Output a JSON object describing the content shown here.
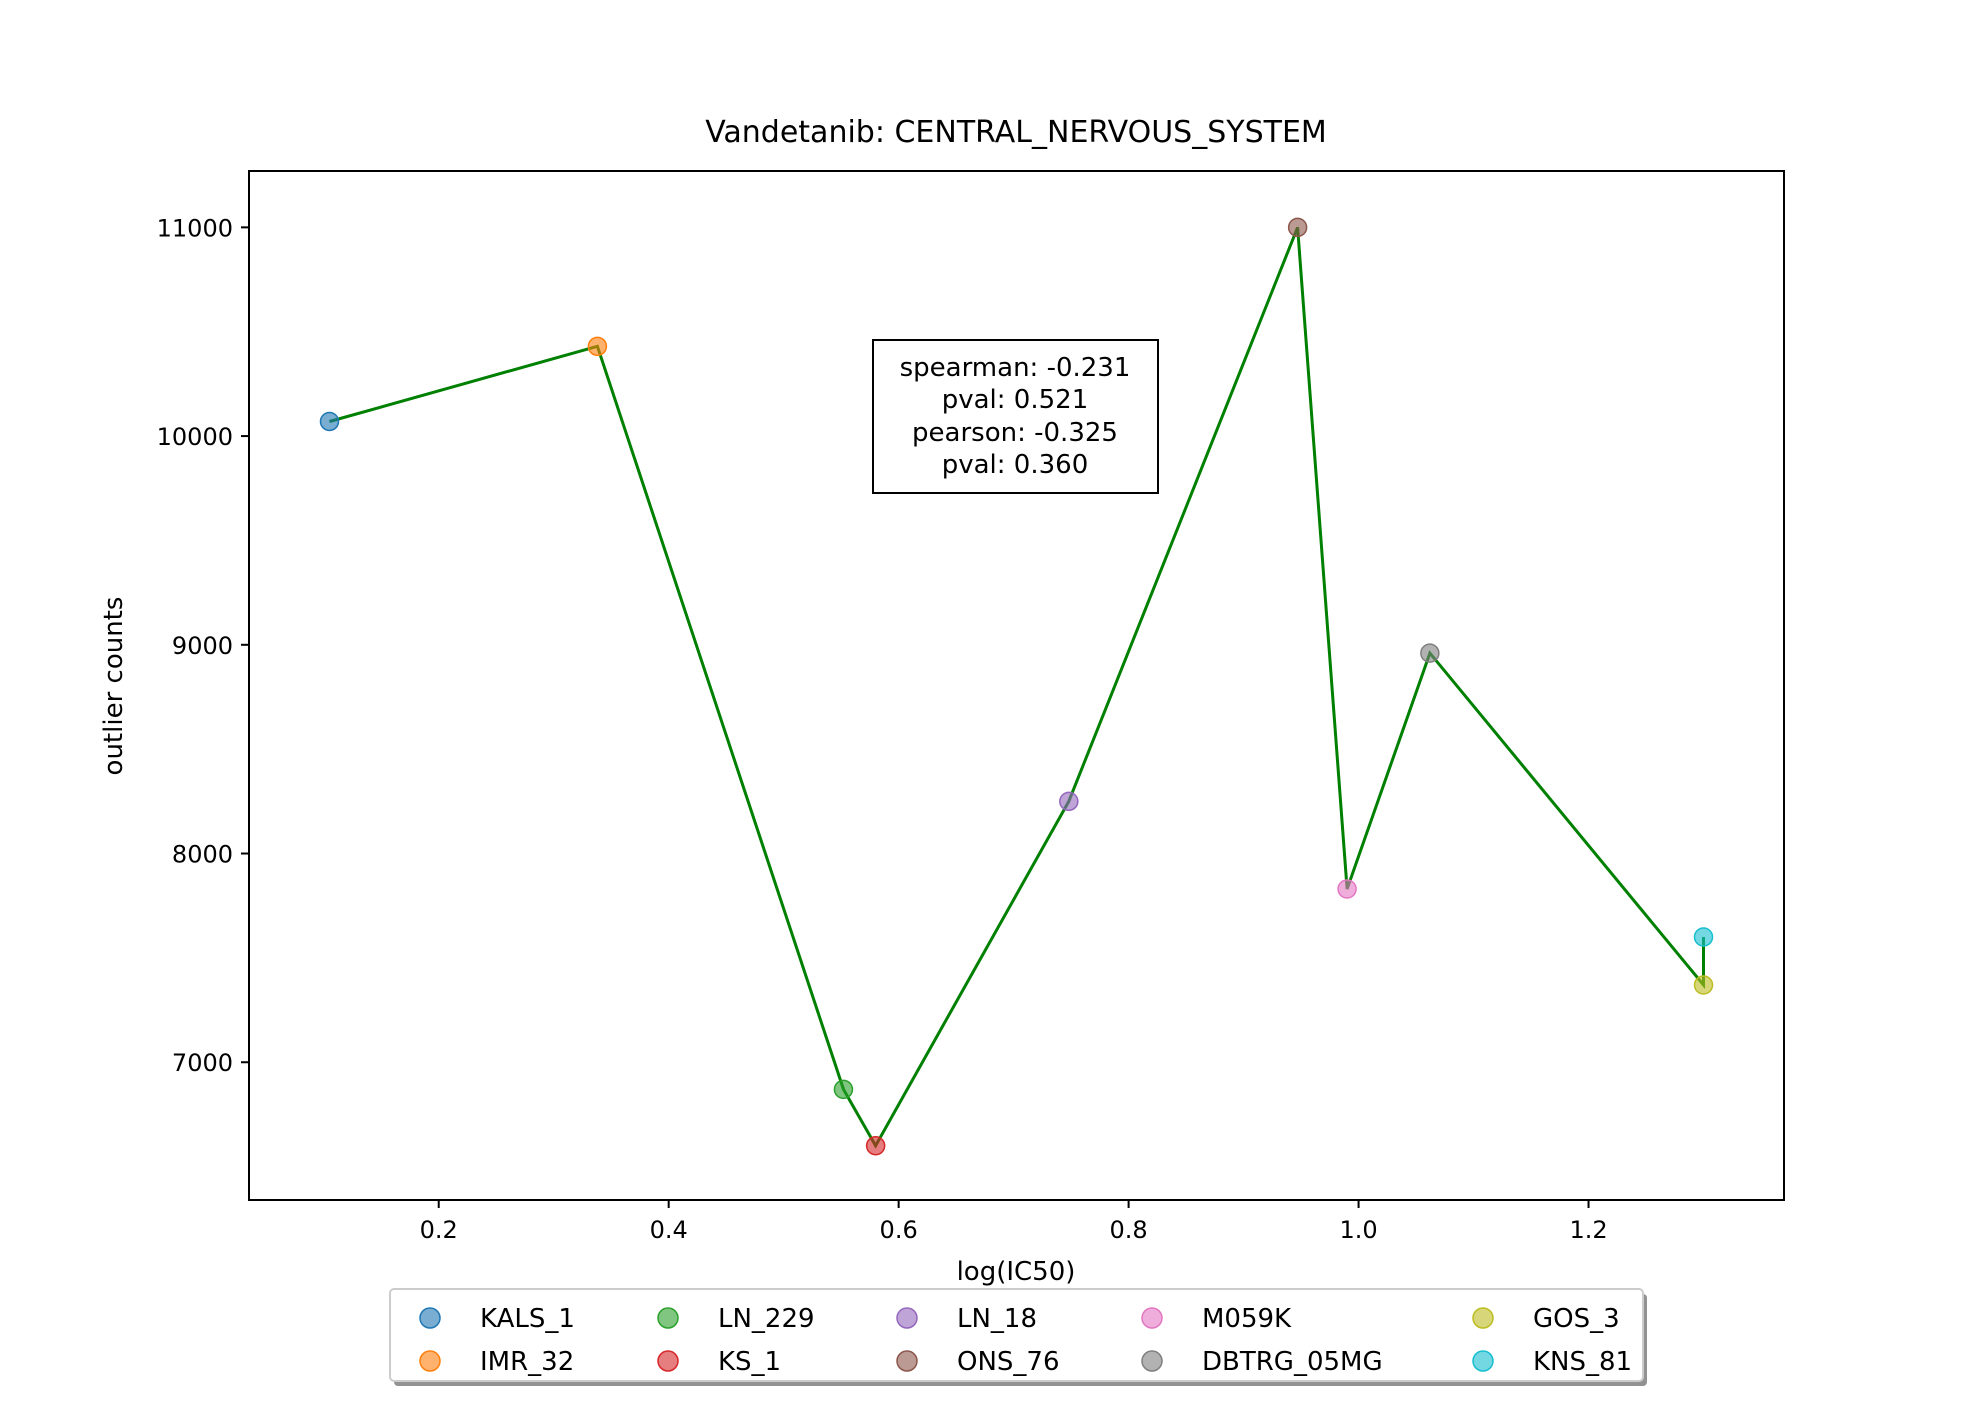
{
  "chart_data": {
    "type": "scatter",
    "title": "Vandetanib: CENTRAL_NERVOUS_SYSTEM",
    "xlabel": "log(IC50)",
    "ylabel": "outlier counts",
    "xlim": [
      0.035,
      1.37
    ],
    "ylim": [
      6340,
      11270
    ],
    "xticks": [
      {
        "value": 0.2,
        "label": "0.2"
      },
      {
        "value": 0.4,
        "label": "0.4"
      },
      {
        "value": 0.6,
        "label": "0.6"
      },
      {
        "value": 0.8,
        "label": "0.8"
      },
      {
        "value": 1.0,
        "label": "1.0"
      },
      {
        "value": 1.2,
        "label": "1.2"
      }
    ],
    "yticks": [
      {
        "value": 7000,
        "label": "7000"
      },
      {
        "value": 8000,
        "label": "8000"
      },
      {
        "value": 9000,
        "label": "9000"
      },
      {
        "value": 10000,
        "label": "10000"
      },
      {
        "value": 11000,
        "label": "11000"
      }
    ],
    "grid": false,
    "series": [
      {
        "name": "KALS_1",
        "x": 0.105,
        "y": 10070,
        "color": "#1f77b4"
      },
      {
        "name": "IMR_32",
        "x": 0.338,
        "y": 10430,
        "color": "#ff7f0e"
      },
      {
        "name": "LN_229",
        "x": 0.552,
        "y": 6870,
        "color": "#2ca02c"
      },
      {
        "name": "KS_1",
        "x": 0.58,
        "y": 6600,
        "color": "#d62728"
      },
      {
        "name": "LN_18",
        "x": 0.748,
        "y": 8250,
        "color": "#9467bd"
      },
      {
        "name": "ONS_76",
        "x": 0.947,
        "y": 11000,
        "color": "#8c564b"
      },
      {
        "name": "M059K",
        "x": 0.99,
        "y": 7830,
        "color": "#e377c2"
      },
      {
        "name": "DBTRG_05MG",
        "x": 1.062,
        "y": 8960,
        "color": "#7f7f7f"
      },
      {
        "name": "GOS_3",
        "x": 1.3,
        "y": 7370,
        "color": "#bcbd22"
      },
      {
        "name": "KNS_81",
        "x": 1.3,
        "y": 7600,
        "color": "#17becf"
      }
    ],
    "line_color": "#008000",
    "annotation": [
      "spearman: -0.231",
      "pval: 0.521",
      "pearson: -0.325",
      "pval: 0.360"
    ],
    "legend_placement": "bottom-center, below axes"
  }
}
